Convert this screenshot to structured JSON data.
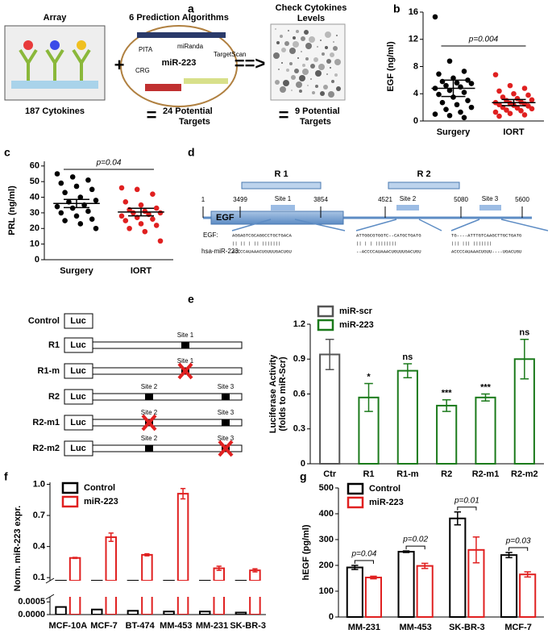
{
  "panel_a": {
    "label": "a",
    "array": "Array",
    "algorithms": "6 Prediction Algorithms",
    "check": [
      "Check Cytokines",
      "Levels"
    ],
    "cytokines": "187 Cytokines",
    "plus": "+",
    "arrow": "==>",
    "equals": "=",
    "targets_predicted": [
      "24 Potential",
      "Targets"
    ],
    "targets_checked": [
      "9 Potential",
      "Targets"
    ],
    "mirna": "miR-223",
    "logos": [
      "PITA",
      "miRanda",
      "TargetScan",
      "CRG"
    ]
  },
  "panel_d": {
    "label": "d",
    "regions": [
      "R 1",
      "R 2"
    ],
    "positions": [
      1,
      3499,
      3854,
      4521,
      5080,
      5600
    ],
    "sites": [
      "Site 1",
      "Site 2",
      "Site 3"
    ],
    "gene": "EGF",
    "row_labels": [
      "EGF:",
      "hsa-miR-223:"
    ],
    "alignments": [
      {
        "target": "AGGAGTCGCAGGCCTGCTGACA",
        "pairs": "|| ||  | ||  |||||||",
        "mirna": "ACCCCAUAAACUGUUUGACUGU"
      },
      {
        "target": "ATTGGCGTGGTC--CATGCTGATG",
        "pairs": "  ||  |  |   ||||||||",
        "mirna": "--ACCCCAUAAACUGUUUGACUGU"
      },
      {
        "target": "TG----ATTTGTCAAGCTTGCTGATG",
        "pairs": "    |||  |||     |||||||",
        "mirna": "ACCCCAUAAACUGUU----UGACUGU"
      }
    ]
  },
  "panel_e_constructs": {
    "rows": [
      {
        "name": "Control",
        "luc": "Luc",
        "insert": false,
        "sites": []
      },
      {
        "name": "R1",
        "luc": "Luc",
        "insert": true,
        "sites": [
          {
            "label": "Site 1",
            "mutated": false
          }
        ]
      },
      {
        "name": "R1-m",
        "luc": "Luc",
        "insert": true,
        "sites": [
          {
            "label": "Site 1",
            "mutated": true
          }
        ]
      },
      {
        "name": "R2",
        "luc": "Luc",
        "insert": true,
        "sites": [
          {
            "label": "Site 2",
            "mutated": false
          },
          {
            "label": "Site 3",
            "mutated": false
          }
        ]
      },
      {
        "name": "R2-m1",
        "luc": "Luc",
        "insert": true,
        "sites": [
          {
            "label": "Site 2",
            "mutated": true
          },
          {
            "label": "Site 3",
            "mutated": false
          }
        ]
      },
      {
        "name": "R2-m2",
        "luc": "Luc",
        "insert": true,
        "sites": [
          {
            "label": "Site 2",
            "mutated": false
          },
          {
            "label": "Site 3",
            "mutated": true
          }
        ]
      }
    ]
  },
  "chart_data": [
    {
      "label": "b",
      "type": "strip",
      "ylabel": [
        "EGF (ng/ml)"
      ],
      "categories": [
        "Surgery",
        "IORT"
      ],
      "groups": [
        {
          "color": "#000000",
          "values": [
            15.3,
            8.8,
            7.3,
            6.9,
            6.3,
            6.0,
            5.8,
            5.6,
            5.5,
            5.2,
            5.0,
            4.8,
            4.5,
            4.2,
            3.9,
            3.5,
            3.0,
            2.7,
            2.4,
            2.0,
            1.7,
            1.3,
            1.0,
            0.8,
            0.5
          ],
          "mean": 4.8,
          "sem": 1.2
        },
        {
          "color": "#e02020",
          "values": [
            6.8,
            5.2,
            4.8,
            4.4,
            4.0,
            3.8,
            3.5,
            3.3,
            3.1,
            3.0,
            2.8,
            2.7,
            2.6,
            2.5,
            2.4,
            2.3,
            2.2,
            2.0,
            1.9,
            1.8,
            1.6,
            1.5,
            1.3,
            1.1,
            0.9,
            0.7
          ],
          "mean": 2.7,
          "sem": 0.45
        }
      ],
      "ylim": [
        0,
        16
      ],
      "yticks": [
        0,
        4,
        8,
        12,
        16
      ],
      "annotation": "p=0.004"
    },
    {
      "label": "c",
      "type": "strip",
      "ylabel": [
        "PRL (ng/ml)"
      ],
      "categories": [
        "Surgery",
        "IORT"
      ],
      "groups": [
        {
          "color": "#000000",
          "values": [
            55,
            53,
            51,
            49,
            47,
            45,
            43,
            40,
            38,
            37,
            35,
            34,
            33,
            31,
            30,
            28,
            26,
            25,
            23,
            20
          ],
          "mean": 36,
          "sem": 2.6
        },
        {
          "color": "#e02020",
          "values": [
            46,
            45,
            42,
            37,
            35,
            33,
            32,
            31,
            30,
            30,
            29,
            28,
            27,
            26,
            25,
            23,
            22,
            20,
            18,
            12
          ],
          "mean": 30.5,
          "sem": 2.4
        }
      ],
      "ylim": [
        0,
        63
      ],
      "yticks": [
        0,
        10,
        20,
        30,
        40,
        50,
        60
      ],
      "annotation": "p=0.04"
    },
    {
      "label": "e",
      "type": "bar",
      "ylabel": [
        "Luciferase Activity",
        "(folds to miR-Scr)"
      ],
      "categories": [
        "Ctr",
        "R1",
        "R1-m",
        "R2",
        "R2-m1",
        "R2-m2"
      ],
      "series": [
        {
          "name": "miR-scr",
          "color": "#555555",
          "values": [
            0.94,
            null,
            null,
            null,
            null,
            null
          ],
          "errors": [
            0.13,
            null,
            null,
            null,
            null,
            null
          ]
        },
        {
          "name": "miR-223",
          "color": "#1b7a1b",
          "values": [
            null,
            0.57,
            0.8,
            0.5,
            0.57,
            0.9
          ],
          "errors": [
            null,
            0.12,
            0.06,
            0.05,
            0.03,
            0.17
          ]
        }
      ],
      "significance": [
        null,
        "*",
        "ns",
        "***",
        "***",
        "ns"
      ],
      "ylim": [
        0,
        1.2
      ],
      "yticks": [
        0,
        0.3,
        0.6,
        0.9,
        1.2
      ]
    },
    {
      "label": "f",
      "type": "broken-bar",
      "ylabel": [
        "Norm. miR-223 expr."
      ],
      "categories": [
        "MCF-10A",
        "MCF-7",
        "BT-474",
        "MM-453",
        "MM-231",
        "SK-BR-3"
      ],
      "series": [
        {
          "name": "Control",
          "color": "#000000",
          "values": [
            0.0003,
            0.0002,
            0.00015,
            0.00012,
            0.00012,
            8e-05
          ]
        },
        {
          "name": "miR-223",
          "color": "#e02020",
          "values": [
            0.29,
            0.49,
            0.32,
            0.91,
            0.19,
            0.17
          ],
          "errors": [
            0.005,
            0.04,
            0.01,
            0.05,
            0.02,
            0.015
          ]
        }
      ],
      "ylim": [
        0.07,
        1.02
      ],
      "yticks": [
        0.1,
        0.4,
        0.7,
        {
          "value": 1,
          "label": "1.0"
        }
      ],
      "ylim_lower": [
        0,
        0.0007
      ],
      "yticks_lower": [
        {
          "value": 0,
          "label": "0.0000"
        },
        {
          "value": 0.0005,
          "label": "0.0005"
        }
      ]
    },
    {
      "label": "g",
      "type": "bar",
      "ylabel": [
        "hEGF (pg/ml)"
      ],
      "categories": [
        "MM-231",
        "MM-453",
        "SK-BR-3",
        "MCF-7"
      ],
      "series": [
        {
          "name": "Control",
          "color": "#000000",
          "values": [
            192,
            253,
            382,
            240
          ],
          "errors": [
            8,
            3,
            25,
            10
          ]
        },
        {
          "name": "miR-223",
          "color": "#e02020",
          "values": [
            153,
            198,
            260,
            165
          ],
          "errors": [
            5,
            10,
            50,
            10
          ]
        }
      ],
      "p_values": [
        "p=0.04",
        "p=0.02",
        "p=0.01",
        "p=0.03"
      ],
      "ylim": [
        0,
        500
      ],
      "yticks": [
        0,
        100,
        200,
        300,
        400,
        500
      ]
    }
  ]
}
